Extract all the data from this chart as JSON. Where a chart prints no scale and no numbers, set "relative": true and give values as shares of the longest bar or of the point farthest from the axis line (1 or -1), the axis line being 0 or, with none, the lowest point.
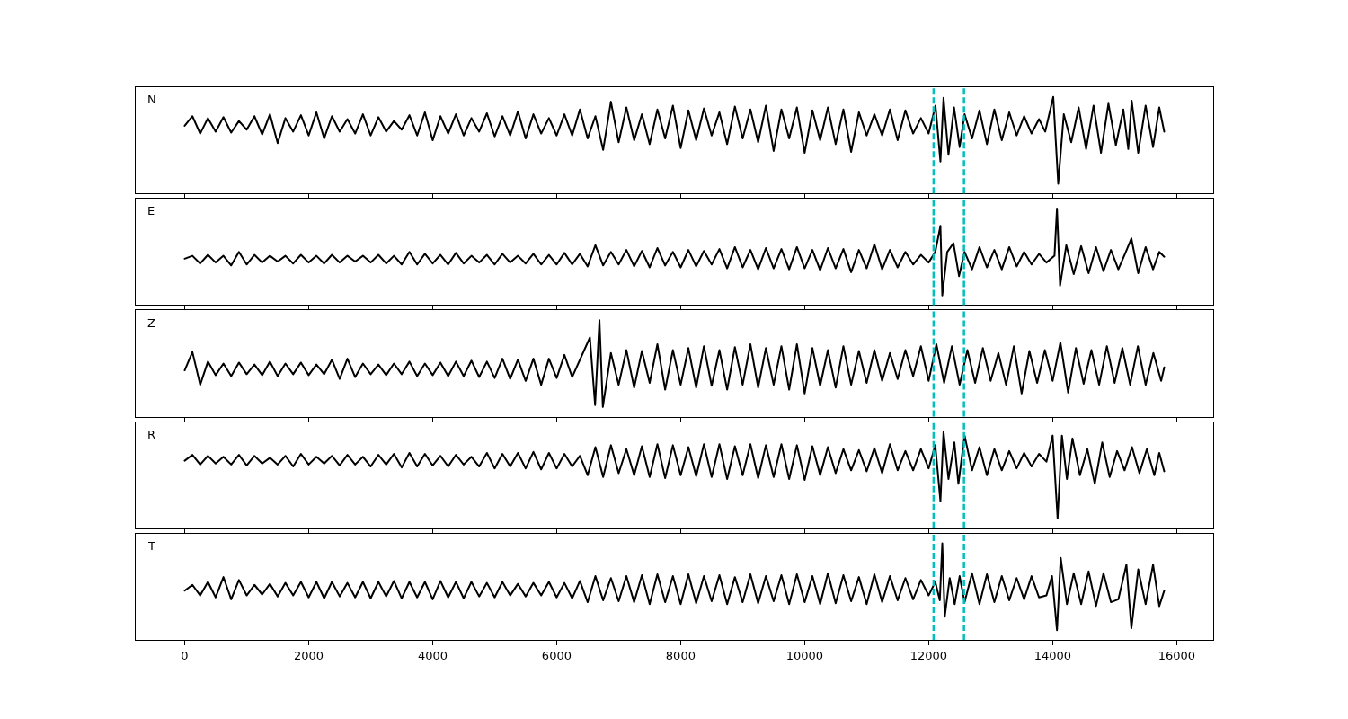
{
  "chart_data": [
    {
      "type": "line",
      "title": "N",
      "relative": true,
      "xlim": [
        -790,
        16590
      ],
      "xticks": [
        0,
        2000,
        4000,
        6000,
        8000,
        10000,
        12000,
        14000,
        16000
      ],
      "tick_labels": false,
      "ref_lines": [
        {
          "axis": "x",
          "value": 12080,
          "color": "#00bfbf",
          "line_style": "dashed"
        },
        {
          "axis": "x",
          "value": 12570,
          "color": "#00bfbf",
          "line_style": "dashed"
        }
      ],
      "x": [
        0,
        125,
        250,
        375,
        500,
        625,
        750,
        875,
        1000,
        1125,
        1250,
        1375,
        1500,
        1625,
        1750,
        1875,
        2000,
        2125,
        2250,
        2375,
        2500,
        2625,
        2750,
        2875,
        3000,
        3125,
        3250,
        3375,
        3500,
        3625,
        3750,
        3875,
        4000,
        4125,
        4250,
        4375,
        4500,
        4625,
        4750,
        4875,
        5000,
        5125,
        5250,
        5375,
        5500,
        5625,
        5750,
        5875,
        6000,
        6125,
        6250,
        6375,
        6500,
        6625,
        6750,
        6875,
        7000,
        7125,
        7250,
        7375,
        7500,
        7625,
        7750,
        7875,
        8000,
        8125,
        8250,
        8375,
        8500,
        8625,
        8750,
        8875,
        9000,
        9125,
        9250,
        9375,
        9500,
        9625,
        9750,
        9875,
        10000,
        10125,
        10250,
        10375,
        10500,
        10625,
        10750,
        10875,
        11000,
        11125,
        11250,
        11375,
        11500,
        11625,
        11750,
        11875,
        12000,
        12110,
        12190,
        12240,
        12320,
        12410,
        12500,
        12580,
        12700,
        12820,
        12940,
        13060,
        13180,
        13300,
        13420,
        13540,
        13660,
        13780,
        13880,
        14010,
        14090,
        14180,
        14300,
        14420,
        14540,
        14660,
        14780,
        14900,
        15020,
        15140,
        15220,
        15275,
        15380,
        15500,
        15620,
        15720,
        15800
      ],
      "series": [
        {
          "color": "#000000",
          "values": [
            0.7,
            0.8,
            0.62,
            0.78,
            0.64,
            0.79,
            0.63,
            0.75,
            0.66,
            0.8,
            0.61,
            0.82,
            0.52,
            0.78,
            0.64,
            0.81,
            0.6,
            0.84,
            0.57,
            0.8,
            0.64,
            0.77,
            0.62,
            0.82,
            0.6,
            0.79,
            0.64,
            0.75,
            0.66,
            0.81,
            0.6,
            0.84,
            0.55,
            0.8,
            0.62,
            0.82,
            0.6,
            0.78,
            0.64,
            0.83,
            0.59,
            0.8,
            0.6,
            0.85,
            0.57,
            0.82,
            0.62,
            0.78,
            0.6,
            0.82,
            0.6,
            0.87,
            0.57,
            0.8,
            0.45,
            0.95,
            0.53,
            0.89,
            0.55,
            0.82,
            0.51,
            0.87,
            0.57,
            0.91,
            0.47,
            0.86,
            0.55,
            0.88,
            0.6,
            0.84,
            0.51,
            0.9,
            0.57,
            0.87,
            0.53,
            0.91,
            0.44,
            0.87,
            0.57,
            0.89,
            0.42,
            0.86,
            0.55,
            0.89,
            0.51,
            0.87,
            0.43,
            0.84,
            0.6,
            0.82,
            0.6,
            0.87,
            0.55,
            0.86,
            0.62,
            0.78,
            0.62,
            0.91,
            0.33,
            0.99,
            0.4,
            0.89,
            0.48,
            0.82,
            0.57,
            0.86,
            0.51,
            0.87,
            0.55,
            0.84,
            0.6,
            0.8,
            0.62,
            0.77,
            0.64,
            1.0,
            0.1,
            0.82,
            0.53,
            0.89,
            0.46,
            0.91,
            0.42,
            0.93,
            0.5,
            0.87,
            0.46,
            0.96,
            0.42,
            0.91,
            0.48,
            0.89,
            0.64
          ]
        }
      ]
    },
    {
      "type": "line",
      "title": "E",
      "relative": true,
      "xlim": [
        -790,
        16590
      ],
      "xticks": [
        0,
        2000,
        4000,
        6000,
        8000,
        10000,
        12000,
        14000,
        16000
      ],
      "tick_labels": false,
      "ref_lines": [
        {
          "axis": "x",
          "value": 12080,
          "color": "#00bfbf",
          "line_style": "dashed"
        },
        {
          "axis": "x",
          "value": 12570,
          "color": "#00bfbf",
          "line_style": "dashed"
        }
      ],
      "x": [
        0,
        125,
        250,
        375,
        500,
        625,
        750,
        875,
        1000,
        1125,
        1250,
        1375,
        1500,
        1625,
        1750,
        1875,
        2000,
        2125,
        2250,
        2375,
        2500,
        2625,
        2750,
        2875,
        3000,
        3125,
        3250,
        3375,
        3500,
        3625,
        3750,
        3875,
        4000,
        4125,
        4250,
        4375,
        4500,
        4625,
        4750,
        4875,
        5000,
        5125,
        5250,
        5375,
        5500,
        5625,
        5750,
        5875,
        6000,
        6125,
        6250,
        6375,
        6500,
        6625,
        6750,
        6875,
        7000,
        7125,
        7250,
        7375,
        7500,
        7625,
        7750,
        7875,
        8000,
        8125,
        8250,
        8375,
        8500,
        8625,
        8750,
        8875,
        9000,
        9125,
        9250,
        9375,
        9500,
        9625,
        9750,
        9875,
        10000,
        10125,
        10250,
        10375,
        10500,
        10625,
        10750,
        10875,
        11000,
        11125,
        11250,
        11375,
        11500,
        11625,
        11750,
        11875,
        12000,
        12107,
        12190,
        12220,
        12300,
        12400,
        12490,
        12580,
        12700,
        12820,
        12940,
        13060,
        13180,
        13300,
        13420,
        13540,
        13660,
        13780,
        13900,
        14030,
        14070,
        14120,
        14220,
        14340,
        14460,
        14580,
        14700,
        14820,
        14940,
        15060,
        15180,
        15270,
        15380,
        15500,
        15620,
        15720,
        15800
      ],
      "series": [
        {
          "color": "#000000",
          "values": [
            0.48,
            0.51,
            0.43,
            0.52,
            0.44,
            0.51,
            0.41,
            0.55,
            0.42,
            0.52,
            0.44,
            0.51,
            0.45,
            0.51,
            0.43,
            0.52,
            0.44,
            0.51,
            0.43,
            0.52,
            0.44,
            0.51,
            0.45,
            0.51,
            0.44,
            0.52,
            0.43,
            0.51,
            0.42,
            0.55,
            0.42,
            0.53,
            0.43,
            0.52,
            0.42,
            0.54,
            0.43,
            0.51,
            0.44,
            0.52,
            0.42,
            0.53,
            0.44,
            0.51,
            0.43,
            0.53,
            0.42,
            0.52,
            0.42,
            0.54,
            0.42,
            0.53,
            0.4,
            0.62,
            0.41,
            0.55,
            0.42,
            0.57,
            0.4,
            0.56,
            0.39,
            0.59,
            0.41,
            0.55,
            0.39,
            0.57,
            0.4,
            0.56,
            0.42,
            0.58,
            0.38,
            0.6,
            0.39,
            0.57,
            0.37,
            0.59,
            0.38,
            0.58,
            0.37,
            0.6,
            0.38,
            0.57,
            0.36,
            0.59,
            0.38,
            0.58,
            0.34,
            0.57,
            0.38,
            0.63,
            0.37,
            0.57,
            0.39,
            0.55,
            0.42,
            0.52,
            0.44,
            0.55,
            0.82,
            0.1,
            0.55,
            0.64,
            0.3,
            0.55,
            0.37,
            0.6,
            0.39,
            0.57,
            0.37,
            0.6,
            0.4,
            0.55,
            0.42,
            0.53,
            0.44,
            0.51,
            1.0,
            0.2,
            0.62,
            0.32,
            0.61,
            0.33,
            0.6,
            0.35,
            0.57,
            0.37,
            0.55,
            0.69,
            0.33,
            0.6,
            0.37,
            0.55,
            0.5
          ]
        }
      ]
    },
    {
      "type": "line",
      "title": "Z",
      "relative": true,
      "xlim": [
        -790,
        16590
      ],
      "xticks": [
        0,
        2000,
        4000,
        6000,
        8000,
        10000,
        12000,
        14000,
        16000
      ],
      "tick_labels": false,
      "ref_lines": [
        {
          "axis": "x",
          "value": 12080,
          "color": "#00bfbf",
          "line_style": "dashed"
        },
        {
          "axis": "x",
          "value": 12570,
          "color": "#00bfbf",
          "line_style": "dashed"
        }
      ],
      "x": [
        0,
        125,
        250,
        375,
        500,
        625,
        750,
        875,
        1000,
        1125,
        1250,
        1375,
        1500,
        1625,
        1750,
        1875,
        2000,
        2125,
        2250,
        2375,
        2500,
        2625,
        2750,
        2875,
        3000,
        3125,
        3250,
        3375,
        3500,
        3625,
        3750,
        3875,
        4000,
        4125,
        4250,
        4375,
        4500,
        4625,
        4750,
        4875,
        5000,
        5125,
        5250,
        5375,
        5500,
        5625,
        5750,
        5875,
        6000,
        6125,
        6250,
        6536,
        6620,
        6690,
        6745,
        6875,
        7000,
        7125,
        7250,
        7375,
        7500,
        7625,
        7750,
        7875,
        8000,
        8125,
        8250,
        8375,
        8500,
        8625,
        8750,
        8875,
        9000,
        9125,
        9250,
        9375,
        9500,
        9625,
        9750,
        9875,
        10000,
        10125,
        10250,
        10375,
        10500,
        10625,
        10750,
        10875,
        11000,
        11125,
        11250,
        11375,
        11500,
        11625,
        11750,
        11875,
        12000,
        12125,
        12250,
        12375,
        12500,
        12625,
        12750,
        12875,
        13000,
        13125,
        13250,
        13375,
        13500,
        13625,
        13750,
        13875,
        14000,
        14125,
        14250,
        14375,
        14500,
        14625,
        14750,
        14875,
        15000,
        15125,
        15250,
        15375,
        15500,
        15625,
        15750,
        15800
      ],
      "series": [
        {
          "color": "#000000",
          "values": [
            0.48,
            0.67,
            0.33,
            0.57,
            0.43,
            0.55,
            0.42,
            0.56,
            0.44,
            0.54,
            0.43,
            0.57,
            0.42,
            0.55,
            0.44,
            0.56,
            0.43,
            0.54,
            0.44,
            0.59,
            0.39,
            0.6,
            0.41,
            0.55,
            0.44,
            0.54,
            0.43,
            0.55,
            0.44,
            0.57,
            0.42,
            0.55,
            0.43,
            0.56,
            0.42,
            0.57,
            0.42,
            0.58,
            0.41,
            0.57,
            0.4,
            0.6,
            0.39,
            0.59,
            0.37,
            0.6,
            0.33,
            0.6,
            0.4,
            0.64,
            0.41,
            0.82,
            0.12,
            1.0,
            0.1,
            0.66,
            0.33,
            0.69,
            0.3,
            0.68,
            0.35,
            0.75,
            0.28,
            0.69,
            0.33,
            0.71,
            0.3,
            0.73,
            0.32,
            0.69,
            0.28,
            0.72,
            0.33,
            0.75,
            0.3,
            0.71,
            0.33,
            0.73,
            0.28,
            0.75,
            0.24,
            0.71,
            0.32,
            0.69,
            0.3,
            0.73,
            0.33,
            0.68,
            0.35,
            0.69,
            0.37,
            0.66,
            0.39,
            0.69,
            0.42,
            0.73,
            0.37,
            0.75,
            0.35,
            0.73,
            0.33,
            0.69,
            0.35,
            0.71,
            0.37,
            0.66,
            0.33,
            0.73,
            0.24,
            0.68,
            0.35,
            0.69,
            0.37,
            0.77,
            0.25,
            0.71,
            0.34,
            0.69,
            0.33,
            0.73,
            0.35,
            0.71,
            0.33,
            0.73,
            0.33,
            0.66,
            0.37,
            0.51
          ]
        }
      ]
    },
    {
      "type": "line",
      "title": "R",
      "relative": true,
      "xlim": [
        -790,
        16590
      ],
      "xticks": [
        0,
        2000,
        4000,
        6000,
        8000,
        10000,
        12000,
        14000,
        16000
      ],
      "tick_labels": false,
      "ref_lines": [
        {
          "axis": "x",
          "value": 12080,
          "color": "#00bfbf",
          "line_style": "dashed"
        },
        {
          "axis": "x",
          "value": 12570,
          "color": "#00bfbf",
          "line_style": "dashed"
        }
      ],
      "x": [
        0,
        125,
        250,
        375,
        500,
        625,
        750,
        875,
        1000,
        1125,
        1250,
        1375,
        1500,
        1625,
        1750,
        1875,
        2000,
        2125,
        2250,
        2375,
        2500,
        2625,
        2750,
        2875,
        3000,
        3125,
        3250,
        3375,
        3500,
        3625,
        3750,
        3875,
        4000,
        4125,
        4250,
        4375,
        4500,
        4625,
        4750,
        4875,
        5000,
        5125,
        5250,
        5375,
        5500,
        5625,
        5750,
        5875,
        6000,
        6125,
        6250,
        6375,
        6500,
        6625,
        6750,
        6875,
        7000,
        7125,
        7250,
        7375,
        7500,
        7625,
        7750,
        7875,
        8000,
        8125,
        8250,
        8375,
        8500,
        8625,
        8750,
        8875,
        9000,
        9125,
        9250,
        9375,
        9500,
        9625,
        9750,
        9875,
        10000,
        10125,
        10250,
        10375,
        10500,
        10625,
        10750,
        10875,
        11000,
        11125,
        11250,
        11375,
        11500,
        11625,
        11750,
        11875,
        12000,
        12107,
        12190,
        12240,
        12320,
        12415,
        12480,
        12580,
        12700,
        12820,
        12940,
        13060,
        13180,
        13300,
        13420,
        13540,
        13660,
        13780,
        13900,
        14000,
        14080,
        14150,
        14230,
        14320,
        14440,
        14560,
        14680,
        14800,
        14920,
        15040,
        15160,
        15280,
        15400,
        15520,
        15640,
        15720,
        15800
      ],
      "series": [
        {
          "color": "#000000",
          "values": [
            0.7,
            0.76,
            0.66,
            0.75,
            0.67,
            0.74,
            0.66,
            0.76,
            0.65,
            0.75,
            0.67,
            0.73,
            0.66,
            0.75,
            0.64,
            0.77,
            0.66,
            0.74,
            0.67,
            0.75,
            0.65,
            0.76,
            0.66,
            0.74,
            0.64,
            0.76,
            0.66,
            0.77,
            0.63,
            0.78,
            0.64,
            0.77,
            0.65,
            0.75,
            0.64,
            0.76,
            0.66,
            0.74,
            0.64,
            0.78,
            0.62,
            0.77,
            0.64,
            0.78,
            0.62,
            0.79,
            0.61,
            0.78,
            0.62,
            0.77,
            0.64,
            0.75,
            0.55,
            0.84,
            0.53,
            0.86,
            0.57,
            0.82,
            0.55,
            0.85,
            0.53,
            0.87,
            0.52,
            0.86,
            0.55,
            0.84,
            0.54,
            0.87,
            0.53,
            0.87,
            0.51,
            0.85,
            0.55,
            0.87,
            0.52,
            0.86,
            0.53,
            0.87,
            0.51,
            0.86,
            0.5,
            0.85,
            0.55,
            0.84,
            0.57,
            0.82,
            0.6,
            0.81,
            0.59,
            0.83,
            0.57,
            0.87,
            0.6,
            0.8,
            0.6,
            0.82,
            0.62,
            0.86,
            0.28,
            1.0,
            0.51,
            0.89,
            0.46,
            0.96,
            0.6,
            0.84,
            0.55,
            0.82,
            0.6,
            0.8,
            0.62,
            0.78,
            0.64,
            0.77,
            0.69,
            0.96,
            0.1,
            0.96,
            0.51,
            0.93,
            0.55,
            0.82,
            0.46,
            0.89,
            0.53,
            0.8,
            0.6,
            0.84,
            0.57,
            0.82,
            0.55,
            0.78,
            0.59
          ]
        }
      ]
    },
    {
      "type": "line",
      "title": "T",
      "relative": true,
      "xlim": [
        -790,
        16590
      ],
      "xticks": [
        0,
        2000,
        4000,
        6000,
        8000,
        10000,
        12000,
        14000,
        16000
      ],
      "tick_labels": "x",
      "ref_lines": [
        {
          "axis": "x",
          "value": 12080,
          "color": "#00bfbf",
          "line_style": "dashed"
        },
        {
          "axis": "x",
          "value": 12570,
          "color": "#00bfbf",
          "line_style": "dashed"
        }
      ],
      "x": [
        0,
        125,
        250,
        375,
        500,
        625,
        750,
        875,
        1000,
        1125,
        1250,
        1375,
        1500,
        1625,
        1750,
        1875,
        2000,
        2125,
        2250,
        2375,
        2500,
        2625,
        2750,
        2875,
        3000,
        3125,
        3250,
        3375,
        3500,
        3625,
        3750,
        3875,
        4000,
        4125,
        4250,
        4375,
        4500,
        4625,
        4750,
        4875,
        5000,
        5125,
        5250,
        5375,
        5500,
        5625,
        5750,
        5875,
        6000,
        6125,
        6250,
        6375,
        6500,
        6625,
        6750,
        6875,
        7000,
        7125,
        7250,
        7375,
        7500,
        7625,
        7750,
        7875,
        8000,
        8125,
        8250,
        8375,
        8500,
        8625,
        8750,
        8875,
        9000,
        9125,
        9250,
        9375,
        9500,
        9625,
        9750,
        9875,
        10000,
        10125,
        10250,
        10375,
        10500,
        10625,
        10750,
        10875,
        11000,
        11125,
        11250,
        11375,
        11500,
        11625,
        11750,
        11875,
        12000,
        12107,
        12180,
        12220,
        12260,
        12340,
        12420,
        12500,
        12580,
        12700,
        12820,
        12940,
        13060,
        13180,
        13300,
        13420,
        13540,
        13660,
        13780,
        13900,
        13990,
        14070,
        14130,
        14230,
        14340,
        14460,
        14580,
        14700,
        14820,
        14940,
        15060,
        15190,
        15270,
        15380,
        15500,
        15620,
        15720,
        15800
      ],
      "series": [
        {
          "color": "#000000",
          "values": [
            0.51,
            0.57,
            0.46,
            0.6,
            0.44,
            0.65,
            0.42,
            0.62,
            0.46,
            0.57,
            0.47,
            0.58,
            0.45,
            0.59,
            0.46,
            0.6,
            0.44,
            0.6,
            0.43,
            0.6,
            0.45,
            0.59,
            0.44,
            0.6,
            0.43,
            0.6,
            0.45,
            0.61,
            0.43,
            0.6,
            0.44,
            0.6,
            0.42,
            0.61,
            0.44,
            0.6,
            0.43,
            0.6,
            0.45,
            0.59,
            0.44,
            0.6,
            0.46,
            0.58,
            0.45,
            0.59,
            0.46,
            0.6,
            0.44,
            0.59,
            0.43,
            0.61,
            0.39,
            0.66,
            0.41,
            0.64,
            0.4,
            0.66,
            0.39,
            0.67,
            0.37,
            0.68,
            0.39,
            0.66,
            0.37,
            0.68,
            0.38,
            0.66,
            0.4,
            0.67,
            0.37,
            0.65,
            0.39,
            0.68,
            0.38,
            0.66,
            0.4,
            0.67,
            0.37,
            0.68,
            0.39,
            0.66,
            0.37,
            0.69,
            0.38,
            0.67,
            0.4,
            0.65,
            0.37,
            0.68,
            0.39,
            0.66,
            0.41,
            0.64,
            0.42,
            0.62,
            0.46,
            0.6,
            0.41,
            1.0,
            0.24,
            0.64,
            0.37,
            0.66,
            0.39,
            0.69,
            0.37,
            0.68,
            0.39,
            0.66,
            0.41,
            0.64,
            0.42,
            0.66,
            0.44,
            0.46,
            0.66,
            0.1,
            0.85,
            0.37,
            0.69,
            0.37,
            0.71,
            0.35,
            0.69,
            0.39,
            0.42,
            0.78,
            0.12,
            0.73,
            0.37,
            0.78,
            0.35,
            0.51
          ]
        }
      ]
    }
  ]
}
